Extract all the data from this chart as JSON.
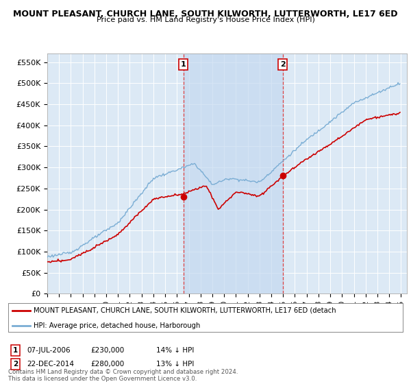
{
  "title": "MOUNT PLEASANT, CHURCH LANE, SOUTH KILWORTH, LUTTERWORTH, LE17 6ED",
  "subtitle": "Price paid vs. HM Land Registry's House Price Index (HPI)",
  "ylim": [
    0,
    570000
  ],
  "yticks": [
    0,
    50000,
    100000,
    150000,
    200000,
    250000,
    300000,
    350000,
    400000,
    450000,
    500000,
    550000
  ],
  "ytick_labels": [
    "£0",
    "£50K",
    "£100K",
    "£150K",
    "£200K",
    "£250K",
    "£300K",
    "£350K",
    "£400K",
    "£450K",
    "£500K",
    "£550K"
  ],
  "xlim_start": 1995,
  "xlim_end": 2025.5,
  "plot_bg": "#dce9f5",
  "shade_color": "#c5d9f0",
  "red_color": "#cc0000",
  "blue_color": "#7aadd4",
  "marker1_x": 2006.54,
  "marker1_y": 230000,
  "marker2_x": 2014.97,
  "marker2_y": 280000,
  "vline_color": "#dd4444",
  "legend_label_red": "MOUNT PLEASANT, CHURCH LANE, SOUTH KILWORTH, LUTTERWORTH, LE17 6ED (detach",
  "legend_label_blue": "HPI: Average price, detached house, Harborough",
  "ann1_label": "1",
  "ann1_text": "07-JUL-2006",
  "ann1_price": "£230,000",
  "ann1_hpi": "14% ↓ HPI",
  "ann2_label": "2",
  "ann2_text": "22-DEC-2014",
  "ann2_price": "£280,000",
  "ann2_hpi": "13% ↓ HPI",
  "footer": "Contains HM Land Registry data © Crown copyright and database right 2024.\nThis data is licensed under the Open Government Licence v3.0."
}
